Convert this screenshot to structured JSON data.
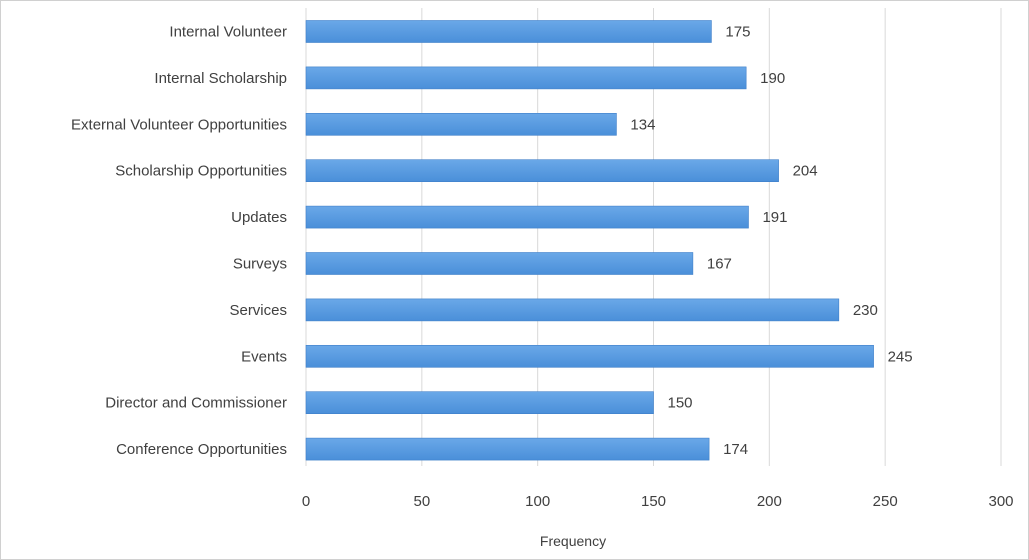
{
  "chart_data": {
    "type": "bar",
    "orientation": "horizontal",
    "categories": [
      "Internal Volunteer",
      "Internal Scholarship",
      "External Volunteer Opportunities",
      "Scholarship Opportunities",
      "Updates",
      "Surveys",
      "Services",
      "Events",
      "Director and Commissioner",
      "Conference Opportunities"
    ],
    "values": [
      175,
      190,
      134,
      204,
      191,
      167,
      230,
      245,
      150,
      174
    ],
    "xlabel": "Frequency",
    "xlim": [
      0,
      300
    ],
    "xticks": [
      0,
      50,
      100,
      150,
      200,
      250,
      300
    ],
    "grid": true,
    "data_labels": true,
    "bar_color": "#4a8fd9",
    "bar_color_light": "#6aa8e8",
    "grid_color": "#d9d9d9"
  }
}
